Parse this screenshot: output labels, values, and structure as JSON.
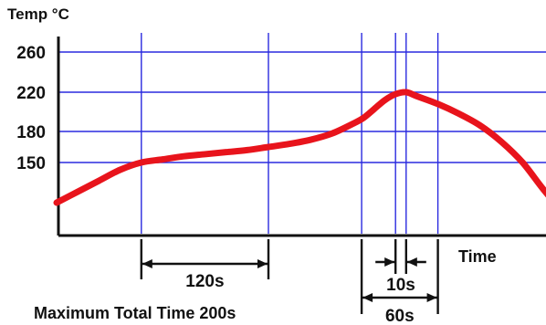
{
  "chart_data": {
    "type": "line",
    "ylabel": "Temp °C",
    "xlabel": "Time",
    "yticks": [
      150,
      180,
      220,
      260
    ],
    "ylim": [
      110,
      270
    ],
    "xlim": [
      0,
      270
    ],
    "grid": true,
    "vertical_markers_s": [
      40,
      100,
      144,
      160,
      165,
      180
    ],
    "series": [
      {
        "color": "#e8141c",
        "x": [
          0,
          10,
          20,
          30,
          40,
          50,
          60,
          70,
          80,
          90,
          100,
          110,
          120,
          130,
          140,
          145,
          150,
          155,
          160,
          165,
          170,
          180,
          190,
          200,
          210,
          220,
          230,
          240,
          250
        ],
        "y": [
          128,
          134,
          140,
          146,
          150,
          153,
          156,
          158,
          160,
          162,
          165,
          168,
          172,
          178,
          188,
          194,
          203,
          212,
          218,
          220,
          216,
          208,
          198,
          186,
          170,
          150,
          135,
          122,
          115
        ]
      }
    ],
    "annotations": [
      {
        "label": "120s",
        "from": 40,
        "to": 100,
        "style": "outward"
      },
      {
        "label": "10s",
        "from": 160,
        "to": 165,
        "style": "inward"
      },
      {
        "label": "60s",
        "from": 144,
        "to": 180,
        "style": "outward"
      }
    ],
    "caption": "Maximum Total Time 200s",
    "colors": {
      "grid": "#2a2adf",
      "axis": "#111111",
      "curve": "#e8141c"
    }
  }
}
